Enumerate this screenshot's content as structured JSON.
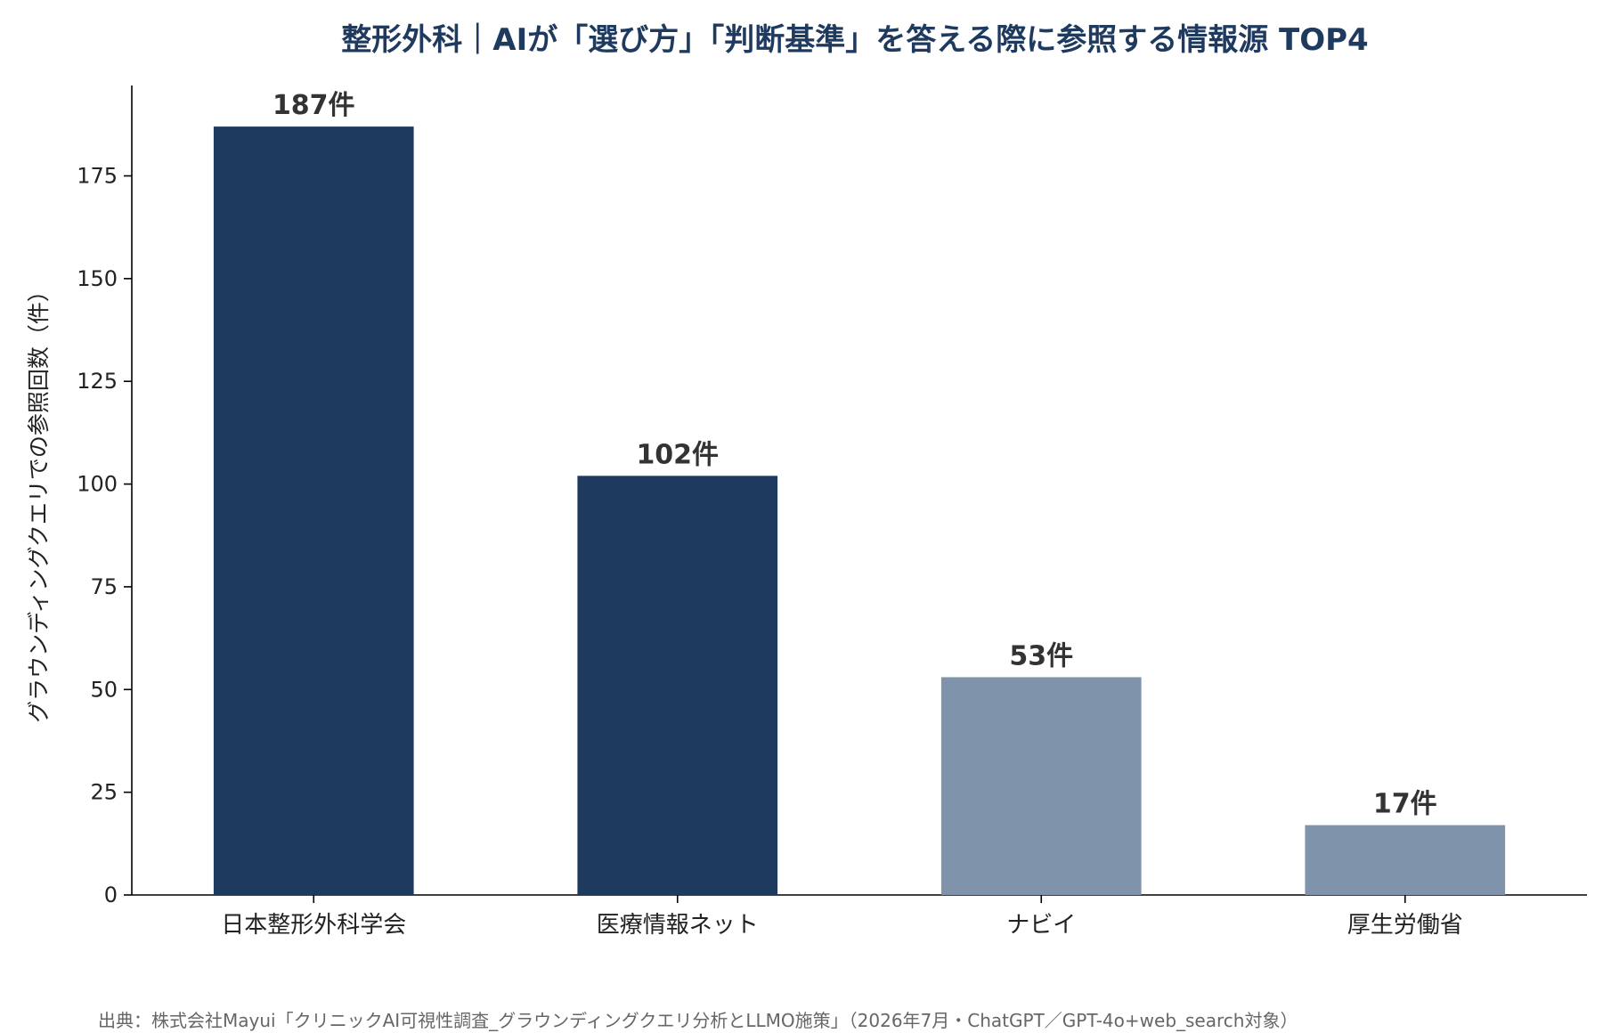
{
  "chart_data": {
    "type": "bar",
    "title": "整形外科｜AIが「選び方」「判断基準」を答える際に参照する情報源 TOP4",
    "xlabel": "",
    "ylabel": "グラウンディングクエリでの参照回数（件）",
    "categories": [
      "日本整形外科学会",
      "医療情報ネット",
      "ナビイ",
      "厚生労働省"
    ],
    "values": [
      187,
      102,
      53,
      17
    ],
    "data_labels": [
      "187件",
      "102件",
      "53件",
      "17件"
    ],
    "bar_colors": [
      "#1f3a5f",
      "#1f3a5f",
      "#7f93ab",
      "#7f93ab"
    ],
    "ylim": [
      0,
      197
    ],
    "yticks": [
      0,
      25,
      50,
      75,
      100,
      125,
      150,
      175
    ],
    "grid": false,
    "legend": "none"
  },
  "footer": {
    "source": "出典：株式会社Mayui「クリニックAI可視性調査_グラウンディングクエリ分析とLLMO施策」（2026年7月・ChatGPT／GPT-4o+web_search対象）"
  }
}
